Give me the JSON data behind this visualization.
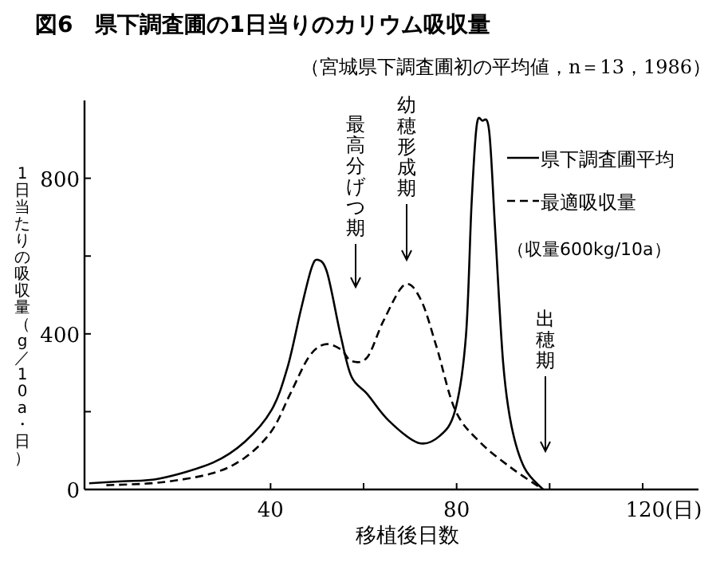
{
  "chart_data": {
    "type": "line",
    "title": "図6　県下調査圃の1日当りのカリウム吸収量",
    "subtitle": "（宮城県下調査圃初の平均値，n＝13，1986）",
    "xlabel": "移植後日数",
    "ylabel": "1日当たりの吸収量（g／10a・日）",
    "xlim": [
      0,
      132
    ],
    "ylim": [
      0,
      1000
    ],
    "xticks": [
      {
        "value": 40,
        "label": "40"
      },
      {
        "value": 60,
        "label": null
      },
      {
        "value": 80,
        "label": "80"
      },
      {
        "value": 100,
        "label": null
      },
      {
        "value": 120,
        "label": "120(日)"
      }
    ],
    "yticks": [
      0,
      {
        "value": 200,
        "label": null
      },
      400,
      {
        "value": 600,
        "label": null
      },
      800
    ],
    "legend": "top right",
    "grid": false,
    "marker": "none",
    "series": [
      {
        "name": "県下調査圃平均",
        "color": "#000000",
        "line_style": "solid",
        "x": [
          1,
          8.1,
          16.2,
          27.6,
          34.5,
          40.2,
          43.6,
          46.5,
          48.8,
          50.2,
          52.2,
          55.1,
          57.4,
          60.8,
          65.4,
          71.7,
          76.3,
          79.7,
          82,
          83.2,
          84.3,
          85.5,
          87,
          88.3,
          90,
          91.8,
          94.6,
          98.6
        ],
        "values": [
          16,
          21,
          28,
          69,
          123,
          204,
          312,
          461,
          569,
          590,
          556,
          394,
          290,
          245,
          177,
          120,
          137,
          204,
          394,
          731,
          934,
          948,
          921,
          664,
          326,
          163,
          55,
          0
        ]
      },
      {
        "name": "最適吸収量",
        "color": "#000000",
        "line_style": "dashed",
        "x": [
          4.7,
          16.2,
          27.6,
          34.5,
          40.2,
          44.2,
          48.2,
          51.6,
          55.1,
          57.4,
          60.8,
          64.3,
          68.8,
          72.3,
          75.7,
          79.7,
          84.9,
          91.8,
          98.6
        ],
        "values": [
          11,
          18,
          42,
          82,
          150,
          245,
          340,
          373,
          360,
          330,
          340,
          434,
          526,
          488,
          366,
          204,
          123,
          55,
          0
        ]
      }
    ],
    "annotations": [
      "最高分げつ期",
      "幼穂形成期",
      "出穂期",
      "（収量600kg/10a）"
    ]
  }
}
